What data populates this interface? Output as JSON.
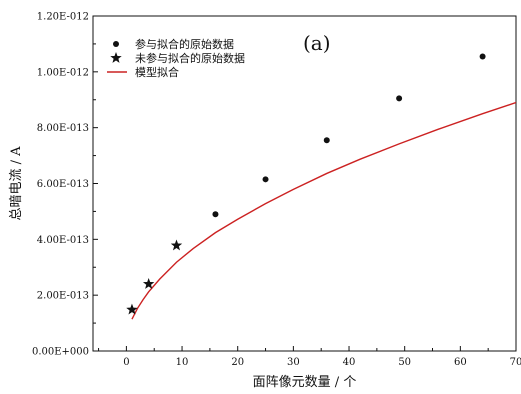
{
  "chart_data": {
    "type": "scatter",
    "panel_label": "(a)",
    "xlabel": "面阵像元数量 / 个",
    "ylabel": "总暗电流 / A",
    "xlim": [
      -6,
      70
    ],
    "ylim": [
      0,
      1.2e-12
    ],
    "x_ticks": [
      0,
      10,
      20,
      30,
      40,
      50,
      60,
      70
    ],
    "x_tick_labels": [
      "0",
      "10",
      "20",
      "30",
      "40",
      "50",
      "60",
      "70"
    ],
    "y_ticks": [
      0,
      2e-13,
      4e-13,
      6e-13,
      8e-13,
      1e-12,
      1.2e-12
    ],
    "y_tick_labels": [
      "0.00E+000",
      "2.00E-013",
      "4.00E-013",
      "6.00E-013",
      "8.00E-013",
      "1.00E-012",
      "1.20E-012"
    ],
    "grid": false,
    "legend_position": "top-left",
    "series": [
      {
        "name": "参与拟合的原始数据",
        "marker": "circle",
        "color": "#111111",
        "x": [
          16,
          25,
          36,
          49,
          64
        ],
        "y": [
          4.9e-13,
          6.15e-13,
          7.55e-13,
          9.05e-13,
          1.055e-12
        ]
      },
      {
        "name": "未参与拟合的原始数据",
        "marker": "star",
        "color": "#111111",
        "x": [
          1,
          4,
          9
        ],
        "y": [
          1.48e-13,
          2.4e-13,
          3.78e-13
        ]
      },
      {
        "name": "模型拟合",
        "marker": "line",
        "color": "#cc2222",
        "x": [
          1,
          2,
          3,
          4,
          6,
          9,
          12,
          16,
          20,
          25,
          30,
          36,
          42,
          49,
          56,
          64,
          70
        ],
        "y": [
          1.14e-13,
          1.53e-13,
          1.84e-13,
          2.12e-13,
          2.58e-13,
          3.18e-13,
          3.67e-13,
          4.24e-13,
          4.72e-13,
          5.28e-13,
          5.79e-13,
          6.36e-13,
          6.87e-13,
          7.42e-13,
          7.94e-13,
          8.5e-13,
          8.9e-13
        ]
      }
    ]
  }
}
